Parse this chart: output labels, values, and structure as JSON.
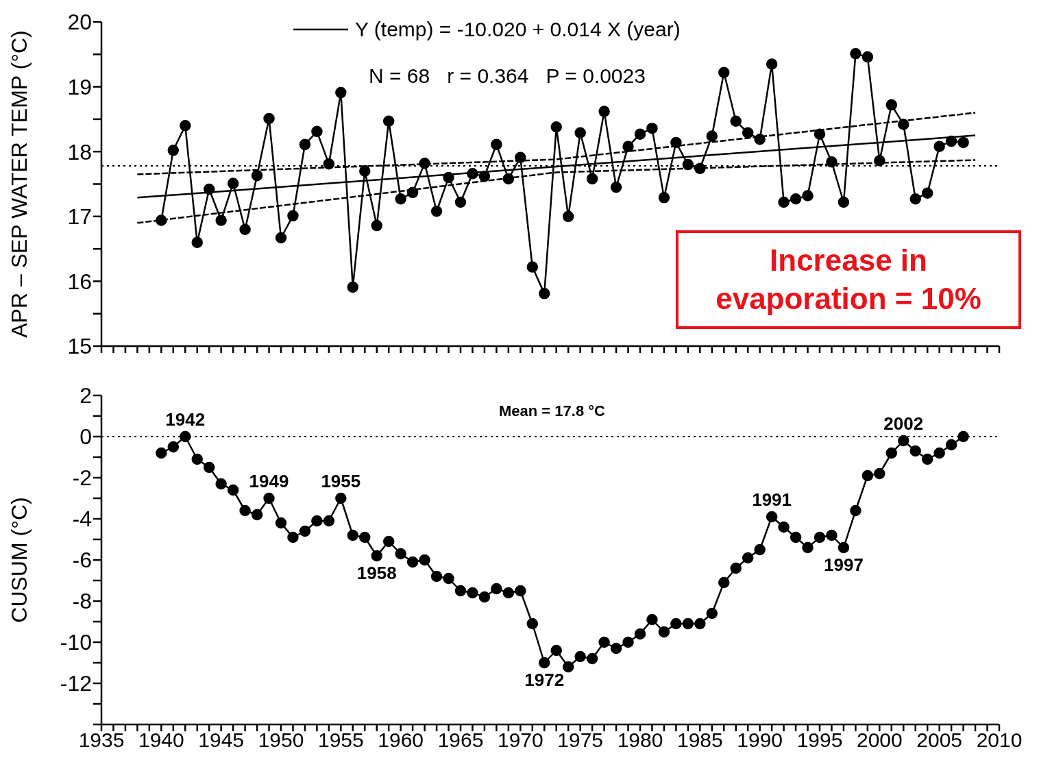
{
  "chart_data": [
    {
      "type": "line",
      "ylabel": "APR – SEP WATER TEMP (°C)",
      "xlim": [
        1935,
        2010
      ],
      "ylim": [
        15,
        20
      ],
      "tick_labels": "y",
      "grid": false,
      "legend": "top",
      "marker": "circle",
      "xticks": [
        1935,
        {
          "value": 1936,
          "label": null
        },
        {
          "value": 1937,
          "label": null
        },
        {
          "value": 1938,
          "label": null
        },
        {
          "value": 1939,
          "label": null
        },
        1940,
        {
          "value": 1941,
          "label": null
        },
        {
          "value": 1942,
          "label": null
        },
        {
          "value": 1943,
          "label": null
        },
        {
          "value": 1944,
          "label": null
        },
        1945,
        {
          "value": 1946,
          "label": null
        },
        {
          "value": 1947,
          "label": null
        },
        {
          "value": 1948,
          "label": null
        },
        {
          "value": 1949,
          "label": null
        },
        1950,
        {
          "value": 1951,
          "label": null
        },
        {
          "value": 1952,
          "label": null
        },
        {
          "value": 1953,
          "label": null
        },
        {
          "value": 1954,
          "label": null
        },
        1955,
        {
          "value": 1956,
          "label": null
        },
        {
          "value": 1957,
          "label": null
        },
        {
          "value": 1958,
          "label": null
        },
        {
          "value": 1959,
          "label": null
        },
        1960,
        {
          "value": 1961,
          "label": null
        },
        {
          "value": 1962,
          "label": null
        },
        {
          "value": 1963,
          "label": null
        },
        {
          "value": 1964,
          "label": null
        },
        1965,
        {
          "value": 1966,
          "label": null
        },
        {
          "value": 1967,
          "label": null
        },
        {
          "value": 1968,
          "label": null
        },
        {
          "value": 1969,
          "label": null
        },
        1970,
        {
          "value": 1971,
          "label": null
        },
        {
          "value": 1972,
          "label": null
        },
        {
          "value": 1973,
          "label": null
        },
        {
          "value": 1974,
          "label": null
        },
        1975,
        {
          "value": 1976,
          "label": null
        },
        {
          "value": 1977,
          "label": null
        },
        {
          "value": 1978,
          "label": null
        },
        {
          "value": 1979,
          "label": null
        },
        1980,
        {
          "value": 1981,
          "label": null
        },
        {
          "value": 1982,
          "label": null
        },
        {
          "value": 1983,
          "label": null
        },
        {
          "value": 1984,
          "label": null
        },
        1985,
        {
          "value": 1986,
          "label": null
        },
        {
          "value": 1987,
          "label": null
        },
        {
          "value": 1988,
          "label": null
        },
        {
          "value": 1989,
          "label": null
        },
        1990,
        {
          "value": 1991,
          "label": null
        },
        {
          "value": 1992,
          "label": null
        },
        {
          "value": 1993,
          "label": null
        },
        {
          "value": 1994,
          "label": null
        },
        1995,
        {
          "value": 1996,
          "label": null
        },
        {
          "value": 1997,
          "label": null
        },
        {
          "value": 1998,
          "label": null
        },
        {
          "value": 1999,
          "label": null
        },
        2000,
        {
          "value": 2001,
          "label": null
        },
        {
          "value": 2002,
          "label": null
        },
        {
          "value": 2003,
          "label": null
        },
        {
          "value": 2004,
          "label": null
        },
        2005,
        {
          "value": 2006,
          "label": null
        },
        {
          "value": 2007,
          "label": null
        },
        {
          "value": 2008,
          "label": null
        },
        {
          "value": 2009,
          "label": null
        },
        2010
      ],
      "yticks": [
        15,
        {
          "value": 15.5,
          "label": null
        },
        16,
        {
          "value": 16.5,
          "label": null
        },
        17,
        {
          "value": 17.5,
          "label": null
        },
        18,
        {
          "value": 18.5,
          "label": null
        },
        19,
        {
          "value": 19.5,
          "label": null
        },
        20
      ],
      "series": [
        {
          "color": "#000000",
          "x": [
            1940,
            1941,
            1942,
            1943,
            1944,
            1945,
            1946,
            1947,
            1948,
            1949,
            1950,
            1951,
            1952,
            1953,
            1954,
            1955,
            1956,
            1957,
            1958,
            1959,
            1960,
            1961,
            1962,
            1963,
            1964,
            1965,
            1966,
            1967,
            1968,
            1969,
            1970,
            1971,
            1972,
            1973,
            1974,
            1975,
            1976,
            1977,
            1978,
            1979,
            1980,
            1981,
            1982,
            1983,
            1984,
            1985,
            1986,
            1987,
            1988,
            1989,
            1990,
            1991,
            1992,
            1993,
            1994,
            1995,
            1996,
            1997,
            1998,
            1999,
            2000,
            2001,
            2002,
            2003,
            2004,
            2005,
            2006,
            2007
          ],
          "values": [
            16.94,
            18.02,
            18.4,
            16.6,
            17.42,
            16.94,
            17.51,
            16.8,
            17.63,
            18.51,
            16.67,
            17.01,
            18.11,
            18.31,
            17.81,
            18.91,
            15.91,
            17.7,
            16.86,
            18.47,
            17.27,
            17.37,
            17.82,
            17.08,
            17.6,
            17.22,
            17.66,
            17.62,
            18.11,
            17.58,
            17.91,
            16.22,
            15.81,
            18.38,
            17.0,
            18.29,
            17.58,
            18.62,
            17.45,
            18.08,
            18.27,
            18.36,
            17.29,
            18.14,
            17.8,
            17.74,
            18.24,
            19.22,
            18.47,
            18.29,
            18.19,
            19.35,
            17.22,
            17.27,
            17.32,
            18.27,
            17.84,
            17.22,
            19.51,
            19.46,
            17.86,
            18.72,
            18.42,
            17.27,
            17.36,
            18.08,
            18.16,
            18.14
          ]
        },
        {
          "name": "Y (temp) = -10.020 + 0.014 X (year)",
          "color": "#000000",
          "marker": "none",
          "line_style": "solid",
          "x": [
            1938,
            2008
          ],
          "values": [
            17.29,
            18.25
          ]
        },
        {
          "color": "#000000",
          "marker": "none",
          "line_style": "dashed",
          "x": [
            1938,
            1973,
            2008
          ],
          "values": [
            17.65,
            17.88,
            18.6
          ]
        },
        {
          "color": "#000000",
          "marker": "none",
          "line_style": "dashed",
          "x": [
            1938,
            1973,
            2008
          ],
          "values": [
            16.9,
            17.68,
            17.87
          ]
        }
      ],
      "ref_lines": [
        {
          "axis": "y",
          "value": 17.78,
          "line_style": "dotted"
        }
      ],
      "annotations": [
        "N = 68   r = 0.364   P = 0.0023",
        "Increase in evaporation = 10%"
      ]
    },
    {
      "type": "line",
      "ylabel": "CUSUM (°C)",
      "xlim": [
        1935,
        2010
      ],
      "ylim": [
        -14,
        2
      ],
      "grid": false,
      "legend": false,
      "marker": "circle",
      "xticks": [
        1935,
        {
          "value": 1936,
          "label": null
        },
        {
          "value": 1937,
          "label": null
        },
        {
          "value": 1938,
          "label": null
        },
        {
          "value": 1939,
          "label": null
        },
        1940,
        {
          "value": 1941,
          "label": null
        },
        {
          "value": 1942,
          "label": null
        },
        {
          "value": 1943,
          "label": null
        },
        {
          "value": 1944,
          "label": null
        },
        1945,
        {
          "value": 1946,
          "label": null
        },
        {
          "value": 1947,
          "label": null
        },
        {
          "value": 1948,
          "label": null
        },
        {
          "value": 1949,
          "label": null
        },
        1950,
        {
          "value": 1951,
          "label": null
        },
        {
          "value": 1952,
          "label": null
        },
        {
          "value": 1953,
          "label": null
        },
        {
          "value": 1954,
          "label": null
        },
        1955,
        {
          "value": 1956,
          "label": null
        },
        {
          "value": 1957,
          "label": null
        },
        {
          "value": 1958,
          "label": null
        },
        {
          "value": 1959,
          "label": null
        },
        1960,
        {
          "value": 1961,
          "label": null
        },
        {
          "value": 1962,
          "label": null
        },
        {
          "value": 1963,
          "label": null
        },
        {
          "value": 1964,
          "label": null
        },
        1965,
        {
          "value": 1966,
          "label": null
        },
        {
          "value": 1967,
          "label": null
        },
        {
          "value": 1968,
          "label": null
        },
        {
          "value": 1969,
          "label": null
        },
        1970,
        {
          "value": 1971,
          "label": null
        },
        {
          "value": 1972,
          "label": null
        },
        {
          "value": 1973,
          "label": null
        },
        {
          "value": 1974,
          "label": null
        },
        1975,
        {
          "value": 1976,
          "label": null
        },
        {
          "value": 1977,
          "label": null
        },
        {
          "value": 1978,
          "label": null
        },
        {
          "value": 1979,
          "label": null
        },
        1980,
        {
          "value": 1981,
          "label": null
        },
        {
          "value": 1982,
          "label": null
        },
        {
          "value": 1983,
          "label": null
        },
        {
          "value": 1984,
          "label": null
        },
        1985,
        {
          "value": 1986,
          "label": null
        },
        {
          "value": 1987,
          "label": null
        },
        {
          "value": 1988,
          "label": null
        },
        {
          "value": 1989,
          "label": null
        },
        1990,
        {
          "value": 1991,
          "label": null
        },
        {
          "value": 1992,
          "label": null
        },
        {
          "value": 1993,
          "label": null
        },
        {
          "value": 1994,
          "label": null
        },
        1995,
        {
          "value": 1996,
          "label": null
        },
        {
          "value": 1997,
          "label": null
        },
        {
          "value": 1998,
          "label": null
        },
        {
          "value": 1999,
          "label": null
        },
        2000,
        {
          "value": 2001,
          "label": null
        },
        {
          "value": 2002,
          "label": null
        },
        {
          "value": 2003,
          "label": null
        },
        {
          "value": 2004,
          "label": null
        },
        2005,
        {
          "value": 2006,
          "label": null
        },
        {
          "value": 2007,
          "label": null
        },
        {
          "value": 2008,
          "label": null
        },
        {
          "value": 2009,
          "label": null
        },
        2010
      ],
      "yticks": [
        {
          "value": -14,
          "label": null
        },
        {
          "value": -13,
          "label": null
        },
        -12,
        {
          "value": -11,
          "label": null
        },
        -10,
        {
          "value": -9,
          "label": null
        },
        -8,
        {
          "value": -7,
          "label": null
        },
        -6,
        {
          "value": -5,
          "label": null
        },
        -4,
        {
          "value": -3,
          "label": null
        },
        -2,
        {
          "value": -1,
          "label": null
        },
        0,
        {
          "value": 1,
          "label": null
        },
        2
      ],
      "series": [
        {
          "color": "#000000",
          "x": [
            1940,
            1941,
            1942,
            1943,
            1944,
            1945,
            1946,
            1947,
            1948,
            1949,
            1950,
            1951,
            1952,
            1953,
            1954,
            1955,
            1956,
            1957,
            1958,
            1959,
            1960,
            1961,
            1962,
            1963,
            1964,
            1965,
            1966,
            1967,
            1968,
            1969,
            1970,
            1971,
            1972,
            1973,
            1974,
            1975,
            1976,
            1977,
            1978,
            1979,
            1980,
            1981,
            1982,
            1983,
            1984,
            1985,
            1986,
            1987,
            1988,
            1989,
            1990,
            1991,
            1992,
            1993,
            1994,
            1995,
            1996,
            1997,
            1998,
            1999,
            2000,
            2001,
            2002,
            2003,
            2004,
            2005,
            2006,
            2007
          ],
          "values": [
            -0.8,
            -0.5,
            0.0,
            -1.1,
            -1.5,
            -2.3,
            -2.6,
            -3.6,
            -3.8,
            -3.0,
            -4.2,
            -4.9,
            -4.6,
            -4.1,
            -4.1,
            -3.0,
            -4.8,
            -4.9,
            -5.8,
            -5.1,
            -5.7,
            -6.1,
            -6.0,
            -6.8,
            -6.9,
            -7.5,
            -7.6,
            -7.8,
            -7.4,
            -7.6,
            -7.5,
            -9.1,
            -11.0,
            -10.4,
            -11.2,
            -10.7,
            -10.8,
            -10.0,
            -10.3,
            -10.0,
            -9.6,
            -8.9,
            -9.5,
            -9.1,
            -9.1,
            -9.1,
            -8.6,
            -7.1,
            -6.4,
            -5.9,
            -5.5,
            -3.9,
            -4.4,
            -4.9,
            -5.4,
            -4.9,
            -4.8,
            -5.4,
            -3.6,
            -1.9,
            -1.8,
            -0.8,
            -0.2,
            -0.7,
            -1.1,
            -0.8,
            -0.4,
            0.0
          ]
        }
      ],
      "ref_lines": [
        {
          "axis": "y",
          "value": 0,
          "line_style": "dotted"
        }
      ],
      "annotations": [
        "Mean = 17.8 °C",
        {
          "text": "1942",
          "x": 1942,
          "y": 0.0
        },
        {
          "text": "1949",
          "x": 1949,
          "y": -3.0
        },
        {
          "text": "1955",
          "x": 1955,
          "y": -3.0
        },
        {
          "text": "1958",
          "x": 1958,
          "y": -5.8
        },
        {
          "text": "1972",
          "x": 1972,
          "y": -11.0
        },
        {
          "text": "1991",
          "x": 1991,
          "y": -3.9
        },
        {
          "text": "1997",
          "x": 1997,
          "y": -5.4
        },
        {
          "text": "2002",
          "x": 2002,
          "y": -0.2
        }
      ]
    }
  ]
}
